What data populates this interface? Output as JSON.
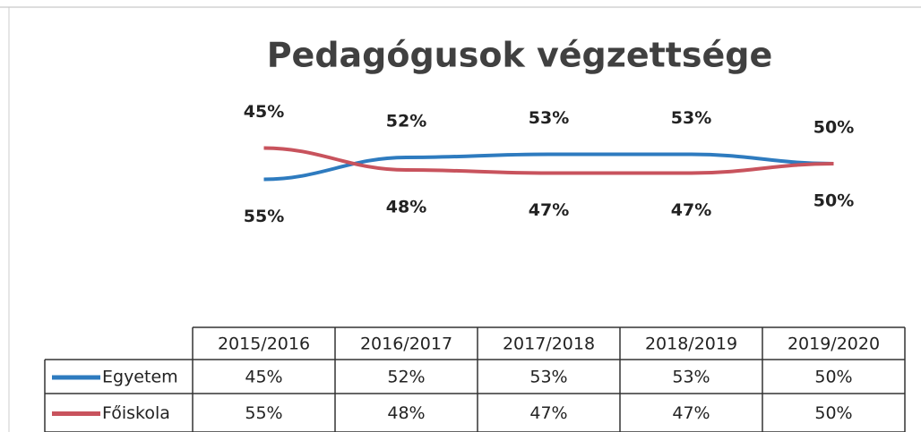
{
  "chart_data": {
    "type": "line",
    "title": "Pedagógusok végzettsége",
    "categories": [
      "2015/2016",
      "2016/2017",
      "2017/2018",
      "2018/2019",
      "2019/2020"
    ],
    "ylim": [
      40,
      60
    ],
    "series": [
      {
        "name": "Egyetem",
        "color": "#2e7bbf",
        "values": [
          45,
          52,
          53,
          53,
          50
        ],
        "value_labels": [
          "45%",
          "52%",
          "53%",
          "53%",
          "50%"
        ]
      },
      {
        "name": "Főiskola",
        "color": "#c8535d",
        "values": [
          55,
          48,
          47,
          47,
          50
        ],
        "value_labels": [
          "55%",
          "48%",
          "47%",
          "47%",
          "50%"
        ]
      }
    ]
  }
}
